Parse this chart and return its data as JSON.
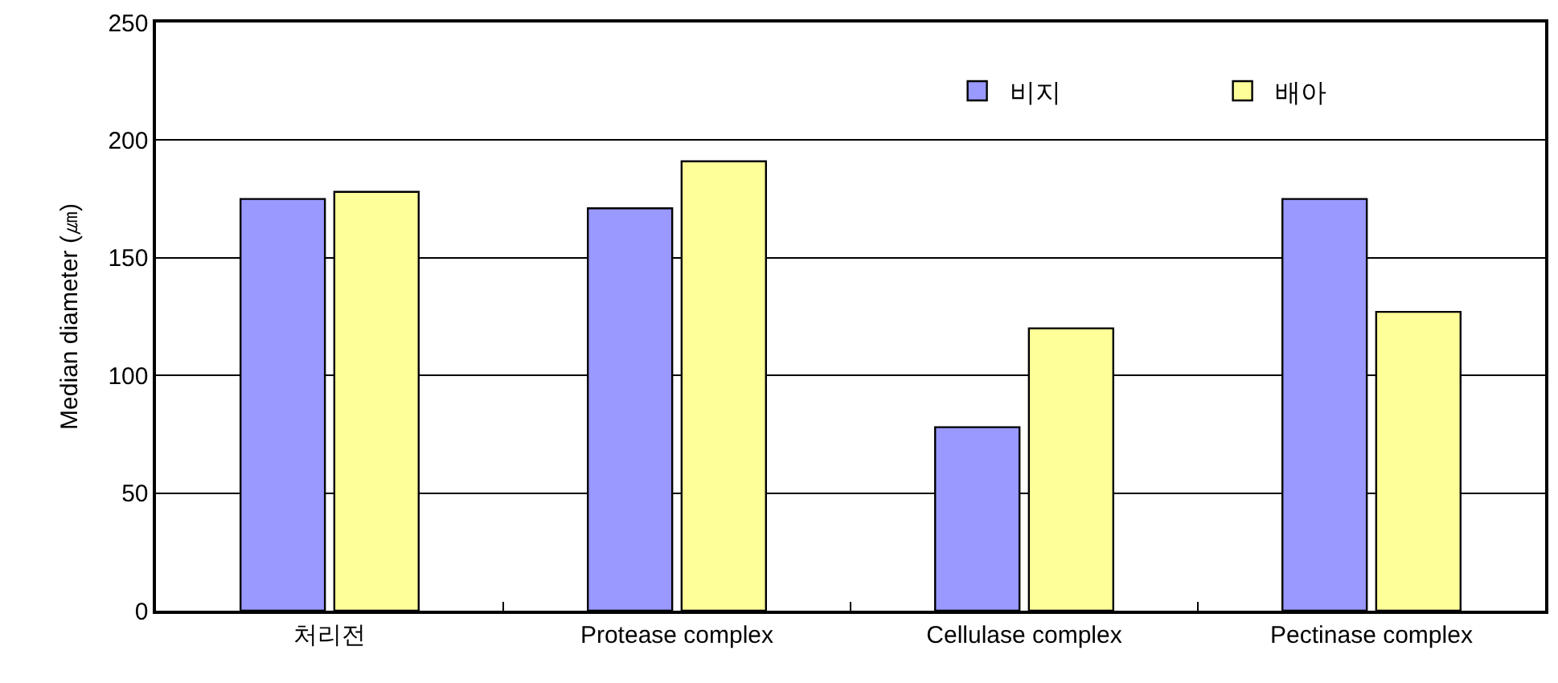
{
  "chart_data": {
    "type": "bar",
    "ylabel": "Median diameter (㎛)",
    "categories": [
      "처리전",
      "Protease complex",
      "Cellulase complex",
      "Pectinase complex"
    ],
    "series": [
      {
        "name": "비지",
        "color": "#9999ff",
        "values": [
          175,
          171,
          78,
          175
        ]
      },
      {
        "name": "배아",
        "color": "#ffff99",
        "values": [
          178,
          191,
          120,
          127
        ]
      }
    ],
    "ylim": [
      0,
      250
    ],
    "yticks": [
      0,
      50,
      100,
      150,
      200,
      250
    ],
    "grid": "y",
    "legend": "top right"
  }
}
